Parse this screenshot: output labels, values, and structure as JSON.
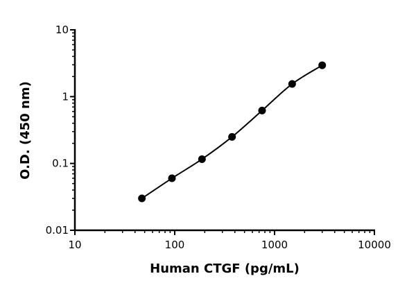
{
  "chart_data": {
    "type": "scatter",
    "title": "",
    "xlabel": "Human CTGF (pg/mL)",
    "ylabel": "O.D. (450 nm)",
    "xscale": "log",
    "yscale": "log",
    "xlim": [
      10,
      10000
    ],
    "ylim": [
      0.01,
      10
    ],
    "xticks": [
      "10",
      "100",
      "1000",
      "10000"
    ],
    "yticks": [
      "0.01",
      "0.1",
      "1",
      "10"
    ],
    "grid": false,
    "series": [
      {
        "name": "Human CTGF",
        "x": [
          46.9,
          93.8,
          187.5,
          375,
          750,
          1500,
          3000
        ],
        "y": [
          0.03,
          0.06,
          0.116,
          0.25,
          0.62,
          1.55,
          2.95
        ],
        "color": "#000000",
        "fit_line": true
      }
    ]
  }
}
